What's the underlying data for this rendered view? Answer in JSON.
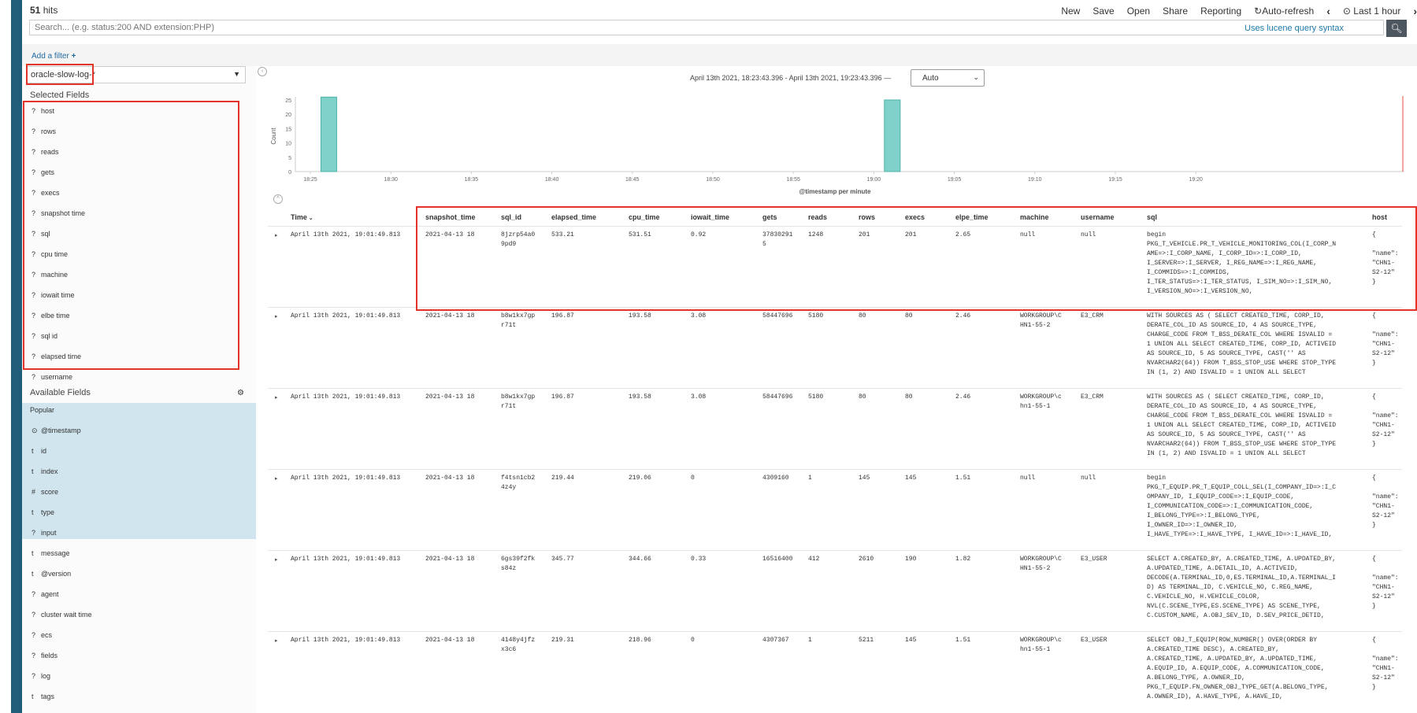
{
  "header": {
    "hits_count": "51",
    "hits_label": "hits",
    "menu": [
      "New",
      "Save",
      "Open",
      "Share",
      "Reporting",
      "Auto-refresh",
      "Last 1 hour"
    ]
  },
  "search": {
    "placeholder": "Search... (e.g. status:200 AND extension:PHP)",
    "lucene_link": "Uses lucene query syntax"
  },
  "filter": {
    "add_label": "Add a filter"
  },
  "sidebar": {
    "index_pattern": "oracle-slow-log-*",
    "selected_heading": "Selected Fields",
    "selected_fields": [
      {
        "type": "?",
        "name": "host"
      },
      {
        "type": "?",
        "name": "rows"
      },
      {
        "type": "?",
        "name": "reads"
      },
      {
        "type": "?",
        "name": "gets"
      },
      {
        "type": "?",
        "name": "execs"
      },
      {
        "type": "?",
        "name": "snapshot time"
      },
      {
        "type": "?",
        "name": "sql"
      },
      {
        "type": "?",
        "name": "cpu time"
      },
      {
        "type": "?",
        "name": "machine"
      },
      {
        "type": "?",
        "name": "iowait time"
      },
      {
        "type": "?",
        "name": "elbe time"
      },
      {
        "type": "?",
        "name": "sql id"
      },
      {
        "type": "?",
        "name": "elapsed time"
      },
      {
        "type": "?",
        "name": "username"
      }
    ],
    "available_heading": "Available Fields",
    "popular_label": "Popular",
    "available_fields": [
      {
        "type": "⊙",
        "name": "@timestamp"
      },
      {
        "type": "t",
        "name": "id"
      },
      {
        "type": "t",
        "name": "index"
      },
      {
        "type": "#",
        "name": "score"
      },
      {
        "type": "t",
        "name": "type"
      },
      {
        "type": "?",
        "name": "input"
      },
      {
        "type": "t",
        "name": "message"
      },
      {
        "type": "t",
        "name": "@version"
      },
      {
        "type": "?",
        "name": "agent"
      },
      {
        "type": "?",
        "name": "cluster wait time"
      },
      {
        "type": "?",
        "name": "ecs"
      },
      {
        "type": "?",
        "name": "fields"
      },
      {
        "type": "?",
        "name": "log"
      },
      {
        "type": "t",
        "name": "tags"
      }
    ]
  },
  "time_range": "April 13th 2021, 18:23:43.396 - April 13th 2021, 19:23:43.396 —",
  "interval": "Auto",
  "chart_data": {
    "type": "bar",
    "ylabel": "Count",
    "xlabel": "@timestamp per minute",
    "ylim": [
      0,
      25
    ],
    "y_ticks": [
      "0",
      "5",
      "10",
      "15",
      "20",
      "25"
    ],
    "x_ticks": [
      "18:25",
      "18:30",
      "18:35",
      "18:40",
      "18:45",
      "18:50",
      "18:55",
      "19:00",
      "19:05",
      "19:10",
      "19:15",
      "19:20"
    ],
    "bars": [
      {
        "x": "18:26",
        "value": 26
      },
      {
        "x": "19:01",
        "value": 25
      }
    ],
    "color": "#7fd1c9"
  },
  "table": {
    "columns": [
      "Time",
      "snapshot_time",
      "sql_id",
      "elapsed_time",
      "cpu_time",
      "iowait_time",
      "gets",
      "reads",
      "rows",
      "execs",
      "elpe_time",
      "machine",
      "username",
      "sql",
      "host"
    ],
    "rows": [
      {
        "time": "April 13th 2021, 19:01:49.813",
        "snapshot_time": "2021-04-13 18",
        "sql_id": "8jzrp54a0\n9pd9",
        "elapsed_time": "533.21",
        "cpu_time": "531.51",
        "iowait_time": "0.92",
        "gets": "37830291\n5",
        "reads": "1248",
        "rows": "201",
        "execs": "201",
        "elpe_time": "2.65",
        "machine": "null",
        "username": "null",
        "sql": "begin\nPKG_T_VEHICLE.PR_T_VEHICLE_MONITORING_COL(I_CORP_N\nAME=>:I_CORP_NAME, I_CORP_ID=>:I_CORP_ID,\nI_SERVER=>:I_SERVER, I_REG_NAME=>:I_REG_NAME,\nI_COMMIDS=>:I_COMMIDS,\nI_TER_STATUS=>:I_TER_STATUS, I_SIM_NO=>:I_SIM_NO,\nI_VERSION_NO=>:I_VERSION_NO,",
        "host": "{\n\n\"name\":\n\"CHN1-\nS2-12\"\n}"
      },
      {
        "time": "April 13th 2021, 19:01:49.813",
        "snapshot_time": "2021-04-13 18",
        "sql_id": "b8w1kx7gp\nr71t",
        "elapsed_time": "196.87",
        "cpu_time": "193.58",
        "iowait_time": "3.08",
        "gets": "58447696",
        "reads": "5180",
        "rows": "80",
        "execs": "80",
        "elpe_time": "2.46",
        "machine": "WORKGROUP\\C\nHN1-55-2",
        "username": "E3_CRM",
        "sql": "WITH SOURCES AS ( SELECT CREATED_TIME, CORP_ID,\nDERATE_COL_ID AS SOURCE_ID, 4 AS SOURCE_TYPE,\nCHARGE_CODE FROM T_BSS_DERATE_COL WHERE ISVALID =\n1 UNION ALL SELECT CREATED_TIME, CORP_ID, ACTIVEID\nAS SOURCE_ID, 5 AS SOURCE_TYPE, CAST('' AS\nNVARCHAR2(64)) FROM T_BSS_STOP_USE WHERE STOP_TYPE\nIN (1, 2) AND ISVALID = 1 UNION ALL SELECT",
        "host": "{\n\n\"name\":\n\"CHN1-\nS2-12\"\n}"
      },
      {
        "time": "April 13th 2021, 19:01:49.813",
        "snapshot_time": "2021-04-13 18",
        "sql_id": "b8w1kx7gp\nr71t",
        "elapsed_time": "196.87",
        "cpu_time": "193.58",
        "iowait_time": "3.08",
        "gets": "58447696",
        "reads": "5180",
        "rows": "80",
        "execs": "80",
        "elpe_time": "2.46",
        "machine": "WORKGROUP\\c\nhn1-55-1",
        "username": "E3_CRM",
        "sql": "WITH SOURCES AS ( SELECT CREATED_TIME, CORP_ID,\nDERATE_COL_ID AS SOURCE_ID, 4 AS SOURCE_TYPE,\nCHARGE_CODE FROM T_BSS_DERATE_COL WHERE ISVALID =\n1 UNION ALL SELECT CREATED_TIME, CORP_ID, ACTIVEID\nAS SOURCE_ID, 5 AS SOURCE_TYPE, CAST('' AS\nNVARCHAR2(64)) FROM T_BSS_STOP_USE WHERE STOP_TYPE\nIN (1, 2) AND ISVALID = 1 UNION ALL SELECT",
        "host": "{\n\n\"name\":\n\"CHN1-\nS2-12\"\n}"
      },
      {
        "time": "April 13th 2021, 19:01:49.813",
        "snapshot_time": "2021-04-13 18",
        "sql_id": "f4tsn1cb2\n4z4y",
        "elapsed_time": "219.44",
        "cpu_time": "219.06",
        "iowait_time": "0",
        "gets": "4309160",
        "reads": "1",
        "rows": "145",
        "execs": "145",
        "elpe_time": "1.51",
        "machine": "null",
        "username": "null",
        "sql": "begin\nPKG_T_EQUIP.PR_T_EQUIP_COLL_SEL(I_COMPANY_ID=>:I_C\nOMPANY_ID, I_EQUIP_CODE=>:I_EQUIP_CODE,\nI_COMMUNICATION_CODE=>:I_COMMUNICATION_CODE,\nI_BELONG_TYPE=>:I_BELONG_TYPE,\nI_OWNER_ID=>:I_OWNER_ID,\nI_HAVE_TYPE=>:I_HAVE_TYPE, I_HAVE_ID=>:I_HAVE_ID,",
        "host": "{\n\n\"name\":\n\"CHN1-\nS2-12\"\n}"
      },
      {
        "time": "April 13th 2021, 19:01:49.813",
        "snapshot_time": "2021-04-13 18",
        "sql_id": "6gs39f2fk\ns84z",
        "elapsed_time": "345.77",
        "cpu_time": "344.66",
        "iowait_time": "0.33",
        "gets": "16516400",
        "reads": "412",
        "rows": "2610",
        "execs": "190",
        "elpe_time": "1.82",
        "machine": "WORKGROUP\\C\nHN1-55-2",
        "username": "E3_USER",
        "sql": "SELECT A.CREATED_BY, A.CREATED_TIME, A.UPDATED_BY,\nA.UPDATED_TIME, A.DETAIL_ID, A.ACTIVEID,\nDECODE(A.TERMINAL_ID,0,ES.TERMINAL_ID,A.TERMINAL_I\nD) AS TERMINAL_ID, C.VEHICLE_NO, C.REG_NAME,\nC.VEHICLE_NO, H.VEHICLE_COLOR,\nNVL(C.SCENE_TYPE,ES.SCENE_TYPE) AS SCENE_TYPE,\nC.CUSTOM_NAME, A.OBJ_SEV_ID, D.SEV_PRICE_DETID,",
        "host": "{\n\n\"name\":\n\"CHN1-\nS2-12\"\n}"
      },
      {
        "time": "April 13th 2021, 19:01:49.813",
        "snapshot_time": "2021-04-13 18",
        "sql_id": "4148y4jfz\nx3c6",
        "elapsed_time": "219.31",
        "cpu_time": "218.96",
        "iowait_time": "0",
        "gets": "4307367",
        "reads": "1",
        "rows": "5211",
        "execs": "145",
        "elpe_time": "1.51",
        "machine": "WORKGROUP\\c\nhn1-55-1",
        "username": "E3_USER",
        "sql": "SELECT OBJ_T_EQUIP(ROW_NUMBER() OVER(ORDER BY\nA.CREATED_TIME DESC), A.CREATED_BY,\nA.CREATED_TIME, A.UPDATED_BY, A.UPDATED_TIME,\nA.EQUIP_ID, A.EQUIP_CODE, A.COMMUNICATION_CODE,\nA.BELONG_TYPE, A.OWNER_ID,\nPKG_T_EQUIP.FN_OWNER_OBJ_TYPE_GET(A.BELONG_TYPE,\nA.OWNER_ID), A.HAVE_TYPE, A.HAVE_ID,",
        "host": "{\n\n\"name\":\n\"CHN1-\nS2-12\"\n}"
      }
    ]
  }
}
